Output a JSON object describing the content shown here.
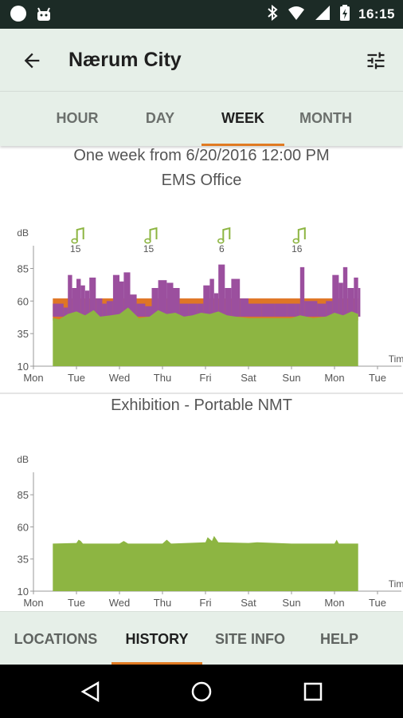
{
  "status_bar": {
    "time": "16:15",
    "icons": [
      "circle-notification-icon",
      "android-notification-icon",
      "bluetooth-icon",
      "wifi-icon",
      "signal-icon",
      "battery-charging-icon"
    ]
  },
  "app_bar": {
    "title": "Nærum City",
    "back_icon": "arrow-back-icon",
    "settings_icon": "tune-sliders-icon"
  },
  "tabs": [
    {
      "label": "HOUR",
      "active": false
    },
    {
      "label": "DAY",
      "active": false
    },
    {
      "label": "WEEK",
      "active": true
    },
    {
      "label": "MONTH",
      "active": false
    }
  ],
  "header": {
    "range_text": "One week from 6/20/2016 12:00 PM"
  },
  "colors": {
    "accent": "#e07a22",
    "green": "#8db542",
    "purple": "#9b4f9e",
    "orange": "#df7625",
    "note": "#8db542"
  },
  "chart_data": [
    {
      "type": "area",
      "title": "EMS Office",
      "ylabel": "dB",
      "xlabel": "Time",
      "ylim": [
        10,
        100
      ],
      "yticks": [
        10,
        35,
        60,
        85
      ],
      "xtick_labels": [
        "Mon",
        "Tue",
        "Wed",
        "Thu",
        "Fri",
        "Sat",
        "Sun",
        "Mon",
        "Tue"
      ],
      "x_range_days": [
        0,
        8
      ],
      "data_start_day": 0.45,
      "data_end_day": 7.55,
      "annotations": [
        {
          "day": 1.05,
          "label": "15",
          "icon": "music-note-icon"
        },
        {
          "day": 2.75,
          "label": "15",
          "icon": "music-note-icon"
        },
        {
          "day": 4.45,
          "label": "6",
          "icon": "music-note-icon"
        },
        {
          "day": 6.2,
          "label": "16",
          "icon": "music-note-icon"
        }
      ],
      "series": [
        {
          "name": "",
          "color": "#df7625",
          "kind": "band",
          "from": 45,
          "to": 62,
          "start_day": 0.45,
          "end_day": 7.55
        },
        {
          "name": "",
          "color": "#9b4f9e",
          "kind": "peaks",
          "points": [
            [
              0.45,
              58
            ],
            [
              0.7,
              55
            ],
            [
              0.8,
              80
            ],
            [
              0.9,
              70
            ],
            [
              1.0,
              77
            ],
            [
              1.1,
              72
            ],
            [
              1.2,
              68
            ],
            [
              1.3,
              78
            ],
            [
              1.45,
              62
            ],
            [
              1.6,
              58
            ],
            [
              1.7,
              60
            ],
            [
              1.85,
              80
            ],
            [
              2.0,
              75
            ],
            [
              2.1,
              82
            ],
            [
              2.25,
              65
            ],
            [
              2.4,
              58
            ],
            [
              2.6,
              56
            ],
            [
              2.75,
              70
            ],
            [
              2.9,
              76
            ],
            [
              3.1,
              74
            ],
            [
              3.25,
              70
            ],
            [
              3.4,
              58
            ],
            [
              3.6,
              58
            ],
            [
              3.8,
              58
            ],
            [
              3.95,
              72
            ],
            [
              4.1,
              77
            ],
            [
              4.2,
              66
            ],
            [
              4.3,
              88
            ],
            [
              4.45,
              70
            ],
            [
              4.6,
              77
            ],
            [
              4.8,
              62
            ],
            [
              5.0,
              58
            ],
            [
              5.3,
              58
            ],
            [
              5.6,
              58
            ],
            [
              5.9,
              58
            ],
            [
              6.1,
              58
            ],
            [
              6.2,
              86
            ],
            [
              6.3,
              60
            ],
            [
              6.6,
              58
            ],
            [
              6.8,
              60
            ],
            [
              6.95,
              80
            ],
            [
              7.1,
              74
            ],
            [
              7.2,
              86
            ],
            [
              7.3,
              70
            ],
            [
              7.45,
              78
            ],
            [
              7.55,
              70
            ]
          ]
        },
        {
          "name": "",
          "color": "#8db542",
          "kind": "level",
          "points": [
            [
              0.45,
              47
            ],
            [
              0.6,
              46
            ],
            [
              0.8,
              50
            ],
            [
              1.0,
              52
            ],
            [
              1.2,
              49
            ],
            [
              1.4,
              53
            ],
            [
              1.55,
              48
            ],
            [
              1.8,
              49
            ],
            [
              2.0,
              50
            ],
            [
              2.2,
              55
            ],
            [
              2.45,
              47
            ],
            [
              2.7,
              48
            ],
            [
              2.9,
              53
            ],
            [
              3.1,
              50
            ],
            [
              3.3,
              51
            ],
            [
              3.5,
              48
            ],
            [
              3.7,
              49
            ],
            [
              3.9,
              51
            ],
            [
              4.1,
              50
            ],
            [
              4.3,
              52
            ],
            [
              4.5,
              49
            ],
            [
              4.7,
              48
            ],
            [
              5.0,
              47
            ],
            [
              5.5,
              47
            ],
            [
              6.0,
              47
            ],
            [
              6.2,
              49
            ],
            [
              6.5,
              47
            ],
            [
              6.8,
              48
            ],
            [
              7.0,
              51
            ],
            [
              7.2,
              49
            ],
            [
              7.4,
              52
            ],
            [
              7.55,
              50
            ]
          ]
        }
      ]
    },
    {
      "type": "area",
      "title": "Exhibition - Portable NMT",
      "ylabel": "dB",
      "xlabel": "Time",
      "ylim": [
        10,
        100
      ],
      "yticks": [
        10,
        35,
        60,
        85
      ],
      "xtick_labels": [
        "Mon",
        "Tue",
        "Wed",
        "Thu",
        "Fri",
        "Sat",
        "Sun",
        "Mon",
        "Tue"
      ],
      "x_range_days": [
        0,
        8
      ],
      "series": [
        {
          "name": "",
          "color": "#8db542",
          "kind": "level",
          "points": [
            [
              0.45,
              47
            ],
            [
              1.0,
              47.5
            ],
            [
              1.05,
              50
            ],
            [
              1.1,
              49
            ],
            [
              1.15,
              47
            ],
            [
              2.0,
              47
            ],
            [
              2.1,
              49
            ],
            [
              2.2,
              47
            ],
            [
              3.0,
              47
            ],
            [
              3.1,
              50
            ],
            [
              3.2,
              47
            ],
            [
              4.0,
              48
            ],
            [
              4.05,
              52
            ],
            [
              4.15,
              49
            ],
            [
              4.2,
              53
            ],
            [
              4.3,
              48
            ],
            [
              5.0,
              47.5
            ],
            [
              5.2,
              48
            ],
            [
              6.0,
              47
            ],
            [
              6.5,
              47
            ],
            [
              7.0,
              47
            ],
            [
              7.05,
              50
            ],
            [
              7.1,
              47
            ],
            [
              7.55,
              47
            ]
          ]
        }
      ]
    }
  ],
  "bottom_nav": [
    {
      "label": "LOCATIONS",
      "active": false
    },
    {
      "label": "HISTORY",
      "active": true
    },
    {
      "label": "SITE INFO",
      "active": false
    },
    {
      "label": "HELP",
      "active": false
    }
  ],
  "system_nav": [
    "back-triangle-icon",
    "home-circle-icon",
    "recents-square-icon"
  ]
}
